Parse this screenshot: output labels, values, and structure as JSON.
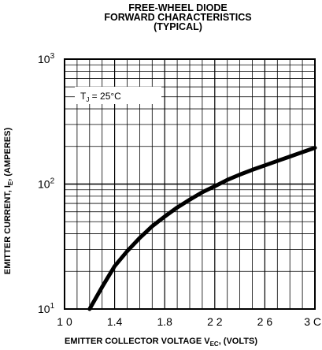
{
  "chart_data": {
    "type": "line",
    "title": [
      "FREE-WHEEL DIODE",
      "FORWARD CHARACTERISTICS",
      "(TYPICAL)"
    ],
    "xlabel": {
      "main": "EMITTER COLLECTOR VOLTAGE  V",
      "sub": "EC",
      "tail": ", (VOLTS)"
    },
    "ylabel": {
      "main": "EMITTER CURRENT, I",
      "sub": "E",
      "tail": ", (AMPERES)"
    },
    "annotation": {
      "main": "T",
      "sub": "J",
      "tail": " = 25°C"
    },
    "x_ticks": [
      "1 0",
      "1.4",
      "1.8",
      "2 2",
      "2 6",
      "3 C"
    ],
    "y_ticks": [
      {
        "base": "10",
        "exp": "1",
        "value": 10
      },
      {
        "base": "10",
        "exp": "2",
        "value": 100
      },
      {
        "base": "10",
        "exp": "3",
        "value": 1000
      }
    ],
    "xlim": [
      1.0,
      3.0
    ],
    "ylim": [
      10,
      1000
    ],
    "yscale": "log",
    "grid": true,
    "series": [
      {
        "x": [
          1.2,
          1.3,
          1.4,
          1.5,
          1.6,
          1.7,
          1.8,
          1.9,
          2.0,
          2.1,
          2.2,
          2.3,
          2.4,
          2.5,
          2.6,
          2.7,
          2.8,
          2.9,
          3.0
        ],
        "y": [
          10,
          15,
          22,
          29,
          37,
          46,
          55,
          65,
          75,
          86,
          96,
          108,
          119,
          130,
          141,
          153,
          166,
          180,
          195
        ]
      }
    ]
  }
}
